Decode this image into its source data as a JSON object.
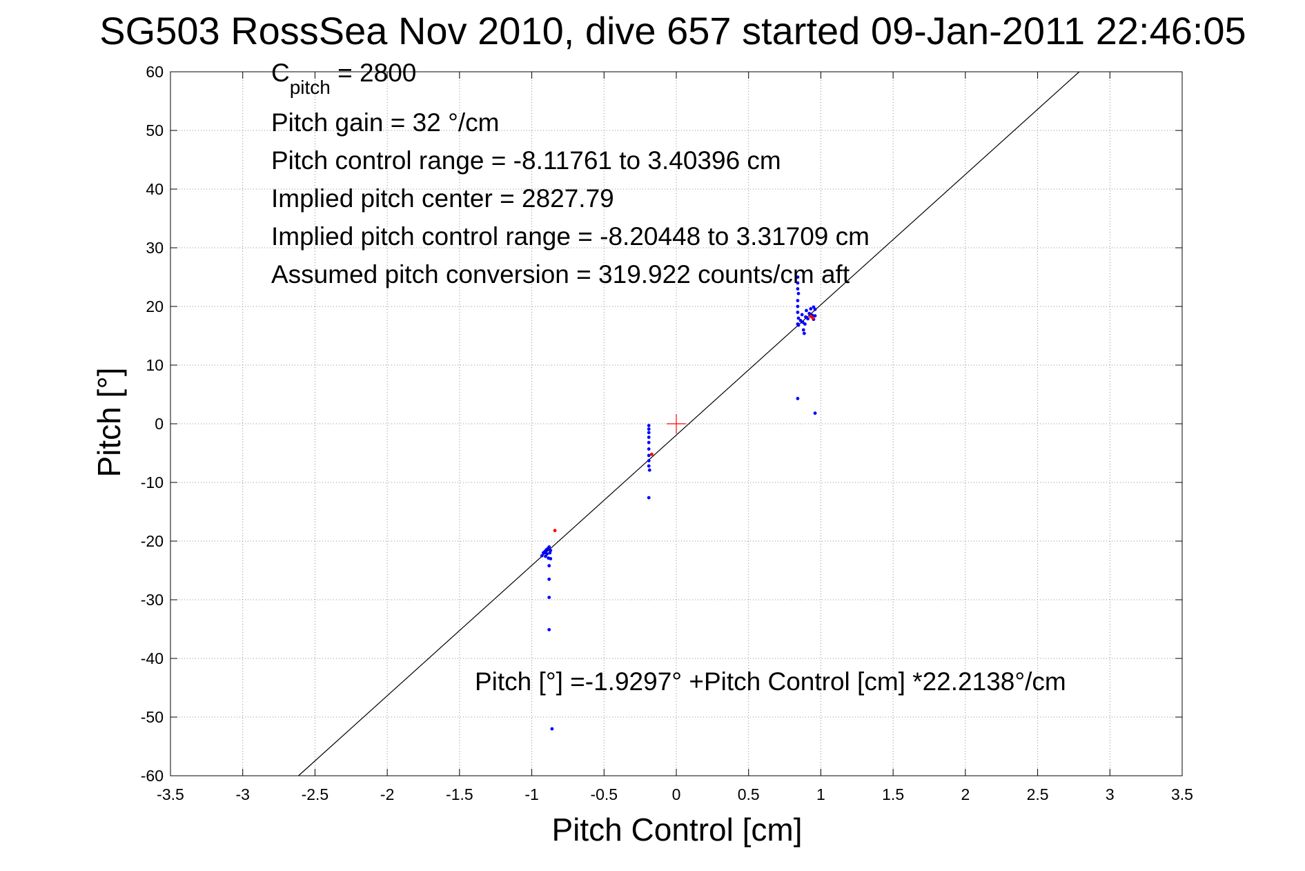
{
  "chart_data": {
    "type": "scatter",
    "title": "SG503 RossSea Nov 2010, dive 657 started 09-Jan-2011 22:46:05",
    "xlabel": "Pitch Control [cm]",
    "ylabel": "Pitch [°]",
    "xlim": [
      -3.5,
      3.5
    ],
    "ylim": [
      -60,
      60
    ],
    "xticks": [
      -3.5,
      -3,
      -2.5,
      -2,
      -1.5,
      -1,
      -0.5,
      0,
      0.5,
      1,
      1.5,
      2,
      2.5,
      3,
      3.5
    ],
    "xtick_labels": [
      "-3.5",
      "-3",
      "-2.5",
      "-2",
      "-1.5",
      "-1",
      "-0.5",
      "0",
      "0.5",
      "1",
      "1.5",
      "2",
      "2.5",
      "3",
      "3.5"
    ],
    "yticks": [
      -60,
      -50,
      -40,
      -30,
      -20,
      -10,
      0,
      10,
      20,
      30,
      40,
      50,
      60
    ],
    "ytick_labels": [
      "-60",
      "-50",
      "-40",
      "-30",
      "-20",
      "-10",
      "0",
      "10",
      "20",
      "30",
      "40",
      "50",
      "60"
    ],
    "grid": true,
    "colors": {
      "data": "#0000ff",
      "highlight": "#ff0000",
      "center": "#ff0000",
      "fit": "#000000"
    },
    "annotations": {
      "c_pitch_main": "C",
      "c_pitch_sub": "pitch",
      "c_pitch_value": " = 2800",
      "lines": [
        "Pitch gain = 32 °/cm",
        "Pitch control range = -8.11761 to 3.40396 cm",
        "Implied pitch center = 2827.79",
        "Implied pitch control range = -8.20448 to 3.31709 cm",
        "Assumed pitch conversion = 319.922 counts/cm aft"
      ],
      "fit_label": "Pitch [°] =-1.9297° +Pitch Control [cm] *22.2138°/cm"
    },
    "fit_line": {
      "intercept": -1.9297,
      "slope": 22.2138
    },
    "center_marker": {
      "x": 0,
      "y": 0
    },
    "series": [
      {
        "values": [
          [
            -0.93,
            -22.5
          ],
          [
            -0.92,
            -22.0
          ],
          [
            -0.91,
            -21.8
          ],
          [
            -0.905,
            -22.6
          ],
          [
            -0.9,
            -21.5
          ],
          [
            -0.895,
            -22.2
          ],
          [
            -0.89,
            -21.3
          ],
          [
            -0.885,
            -22.9
          ],
          [
            -0.88,
            -21.0
          ],
          [
            -0.875,
            -22.0
          ],
          [
            -0.87,
            -21.6
          ],
          [
            -0.87,
            -23.0
          ],
          [
            -0.88,
            -24.2
          ],
          [
            -0.88,
            -26.5
          ],
          [
            -0.88,
            -29.6
          ],
          [
            -0.88,
            -35.1
          ],
          [
            -0.86,
            -52.0
          ],
          [
            -0.19,
            -0.3
          ],
          [
            -0.19,
            -0.9
          ],
          [
            -0.19,
            -1.5
          ],
          [
            -0.19,
            -2.3
          ],
          [
            -0.19,
            -3.2
          ],
          [
            -0.19,
            -4.3
          ],
          [
            -0.19,
            -5.4
          ],
          [
            -0.19,
            -6.3
          ],
          [
            -0.19,
            -7.2
          ],
          [
            -0.185,
            -7.9
          ],
          [
            -0.19,
            -12.6
          ],
          [
            0.84,
            25.0
          ],
          [
            0.84,
            24.0
          ],
          [
            0.84,
            23.0
          ],
          [
            0.845,
            22.2
          ],
          [
            0.84,
            21.0
          ],
          [
            0.84,
            20.0
          ],
          [
            0.84,
            19.0
          ],
          [
            0.845,
            18.0
          ],
          [
            0.84,
            17.0
          ],
          [
            0.845,
            16.8
          ],
          [
            0.86,
            17.6
          ],
          [
            0.87,
            18.6
          ],
          [
            0.875,
            17.3
          ],
          [
            0.88,
            16.0
          ],
          [
            0.885,
            15.4
          ],
          [
            0.89,
            17.0
          ],
          [
            0.895,
            18.2
          ],
          [
            0.9,
            19.3
          ],
          [
            0.91,
            17.9
          ],
          [
            0.92,
            18.8
          ],
          [
            0.93,
            19.6
          ],
          [
            0.94,
            18.5
          ],
          [
            0.95,
            19.9
          ],
          [
            0.95,
            17.8
          ],
          [
            0.96,
            18.4
          ],
          [
            0.96,
            19.5
          ],
          [
            0.84,
            4.3
          ],
          [
            0.96,
            1.8
          ]
        ]
      },
      {
        "values": [
          [
            -0.84,
            -18.2
          ],
          [
            -0.17,
            -5.2
          ],
          [
            0.93,
            18.3
          ],
          [
            0.945,
            18.0
          ]
        ]
      }
    ]
  }
}
